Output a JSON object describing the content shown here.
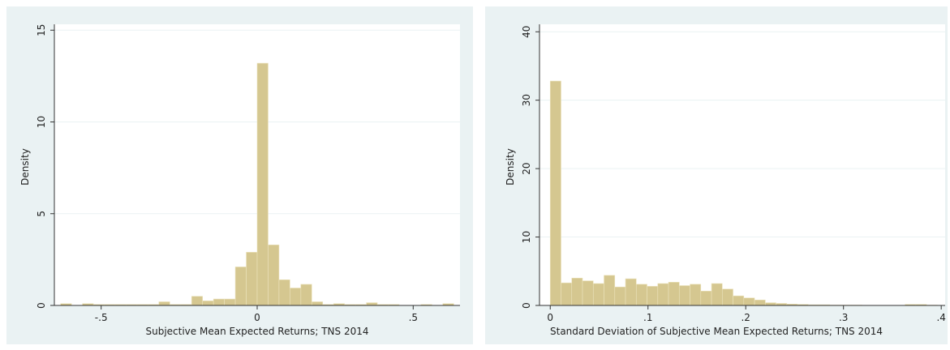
{
  "chart_data": [
    {
      "type": "histogram",
      "x_label": "Subjective Mean Expected Returns; TNS 2014",
      "y_label": "Density",
      "color": "#d5c790",
      "bins": [
        -0.63,
        -0.595,
        -0.56,
        -0.525,
        -0.49,
        -0.455,
        -0.42,
        -0.385,
        -0.35,
        -0.315,
        -0.28,
        -0.245,
        -0.21,
        -0.175,
        -0.14,
        -0.105,
        -0.07,
        -0.035,
        0,
        0.035,
        0.07,
        0.105,
        0.14,
        0.175,
        0.21,
        0.245,
        0.28,
        0.315,
        0.35,
        0.385,
        0.42,
        0.455,
        0.49,
        0.525,
        0.56,
        0.595,
        0.63
      ],
      "values": [
        0.1,
        0,
        0.1,
        0.05,
        0.05,
        0.05,
        0.05,
        0.05,
        0.05,
        0.2,
        0.05,
        0.05,
        0.5,
        0.25,
        0.35,
        0.35,
        2.1,
        2.9,
        13.2,
        3.3,
        1.4,
        0.95,
        1.15,
        0.2,
        0.05,
        0.1,
        0.05,
        0.05,
        0.15,
        0.05,
        0.05,
        0,
        0,
        0.05,
        0,
        0.1
      ],
      "xlim": [
        -0.65,
        0.65
      ],
      "xticks": [
        {
          "value": -0.5,
          "label": "-.5"
        },
        0,
        {
          "value": 0.5,
          "label": ".5"
        }
      ],
      "ylim": [
        0,
        15.1
      ],
      "yticks": [
        0,
        5,
        10,
        15
      ],
      "grid": true
    },
    {
      "type": "histogram",
      "x_label": "Standard Deviation of Subjective Mean Expected Returns; TNS 2014",
      "y_label": "Density",
      "color": "#d5c790",
      "bins": [
        0,
        0.011,
        0.022,
        0.033,
        0.044,
        0.055,
        0.066,
        0.077,
        0.088,
        0.099,
        0.11,
        0.121,
        0.132,
        0.143,
        0.154,
        0.165,
        0.176,
        0.187,
        0.198,
        0.209,
        0.22,
        0.231,
        0.242,
        0.253,
        0.264,
        0.275,
        0.286,
        0.297,
        0.308,
        0.319,
        0.33,
        0.341,
        0.352,
        0.363,
        0.374,
        0.385,
        0.396
      ],
      "values": [
        32.8,
        3.3,
        4.0,
        3.6,
        3.2,
        4.4,
        2.7,
        3.9,
        3.1,
        2.8,
        3.2,
        3.4,
        2.9,
        3.1,
        2.1,
        3.2,
        2.4,
        1.4,
        1.1,
        0.8,
        0.4,
        0.3,
        0.2,
        0.15,
        0.1,
        0.1,
        0.05,
        0.05,
        0.05,
        0,
        0,
        0,
        0,
        0.15,
        0.15,
        0.05
      ],
      "xlim": [
        -0.011,
        0.404
      ],
      "xticks": [
        0,
        {
          "value": 0.1,
          "label": ".1"
        },
        {
          "value": 0.2,
          "label": ".2"
        },
        {
          "value": 0.3,
          "label": ".3"
        },
        {
          "value": 0.4,
          "label": ".4"
        }
      ],
      "ylim": [
        0,
        40.5
      ],
      "yticks": [
        0,
        10,
        20,
        30,
        40
      ],
      "grid": true
    }
  ]
}
